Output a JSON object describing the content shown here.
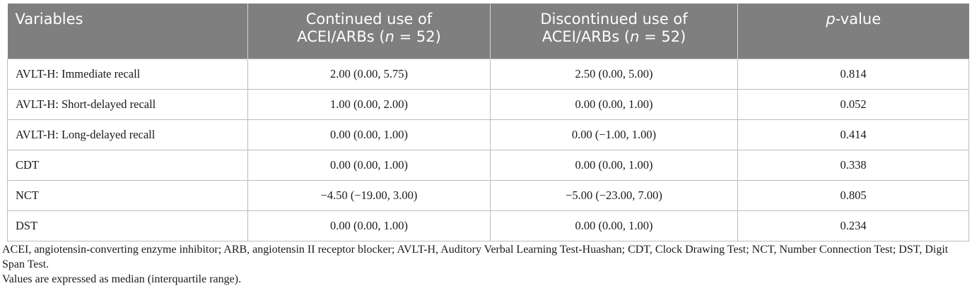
{
  "table": {
    "headers": {
      "col1": "Variables",
      "col2_line1": "Continued use of",
      "col2_line2": "ACEI/ARBs (",
      "col2_n": "n",
      "col2_tail": " = 52)",
      "col3_line1": "Discontinued use of",
      "col3_line2": "ACEI/ARBs (",
      "col3_n": "n",
      "col3_tail": " = 52)",
      "col4_p": "p",
      "col4_tail": "-value"
    },
    "rows": [
      {
        "variable": "AVLT-H: Immediate recall",
        "continued": "2.00 (0.00, 5.75)",
        "discontinued": "2.50 (0.00, 5.00)",
        "p": "0.814"
      },
      {
        "variable": "AVLT-H: Short-delayed recall",
        "continued": "1.00 (0.00, 2.00)",
        "discontinued": "0.00 (0.00, 1.00)",
        "p": "0.052"
      },
      {
        "variable": "AVLT-H: Long-delayed recall",
        "continued": "0.00 (0.00, 1.00)",
        "discontinued": "0.00 (−1.00, 1.00)",
        "p": "0.414"
      },
      {
        "variable": "CDT",
        "continued": "0.00 (0.00, 1.00)",
        "discontinued": "0.00 (0.00, 1.00)",
        "p": "0.338"
      },
      {
        "variable": "NCT",
        "continued": "−4.50 (−19.00, 3.00)",
        "discontinued": "−5.00 (−23.00, 7.00)",
        "p": "0.805"
      },
      {
        "variable": "DST",
        "continued": "0.00 (0.00, 1.00)",
        "discontinued": "0.00 (0.00, 1.00)",
        "p": "0.234"
      }
    ]
  },
  "footnotes": {
    "abbreviations": "ACEI, angiotensin-converting enzyme inhibitor; ARB, angiotensin II receptor blocker; AVLT-H, Auditory Verbal Learning Test-Huashan; CDT, Clock Drawing Test; NCT, Number Connection Test; DST, Digit Span Test.",
    "values_note": "Values are expressed as median (interquartile range)."
  }
}
